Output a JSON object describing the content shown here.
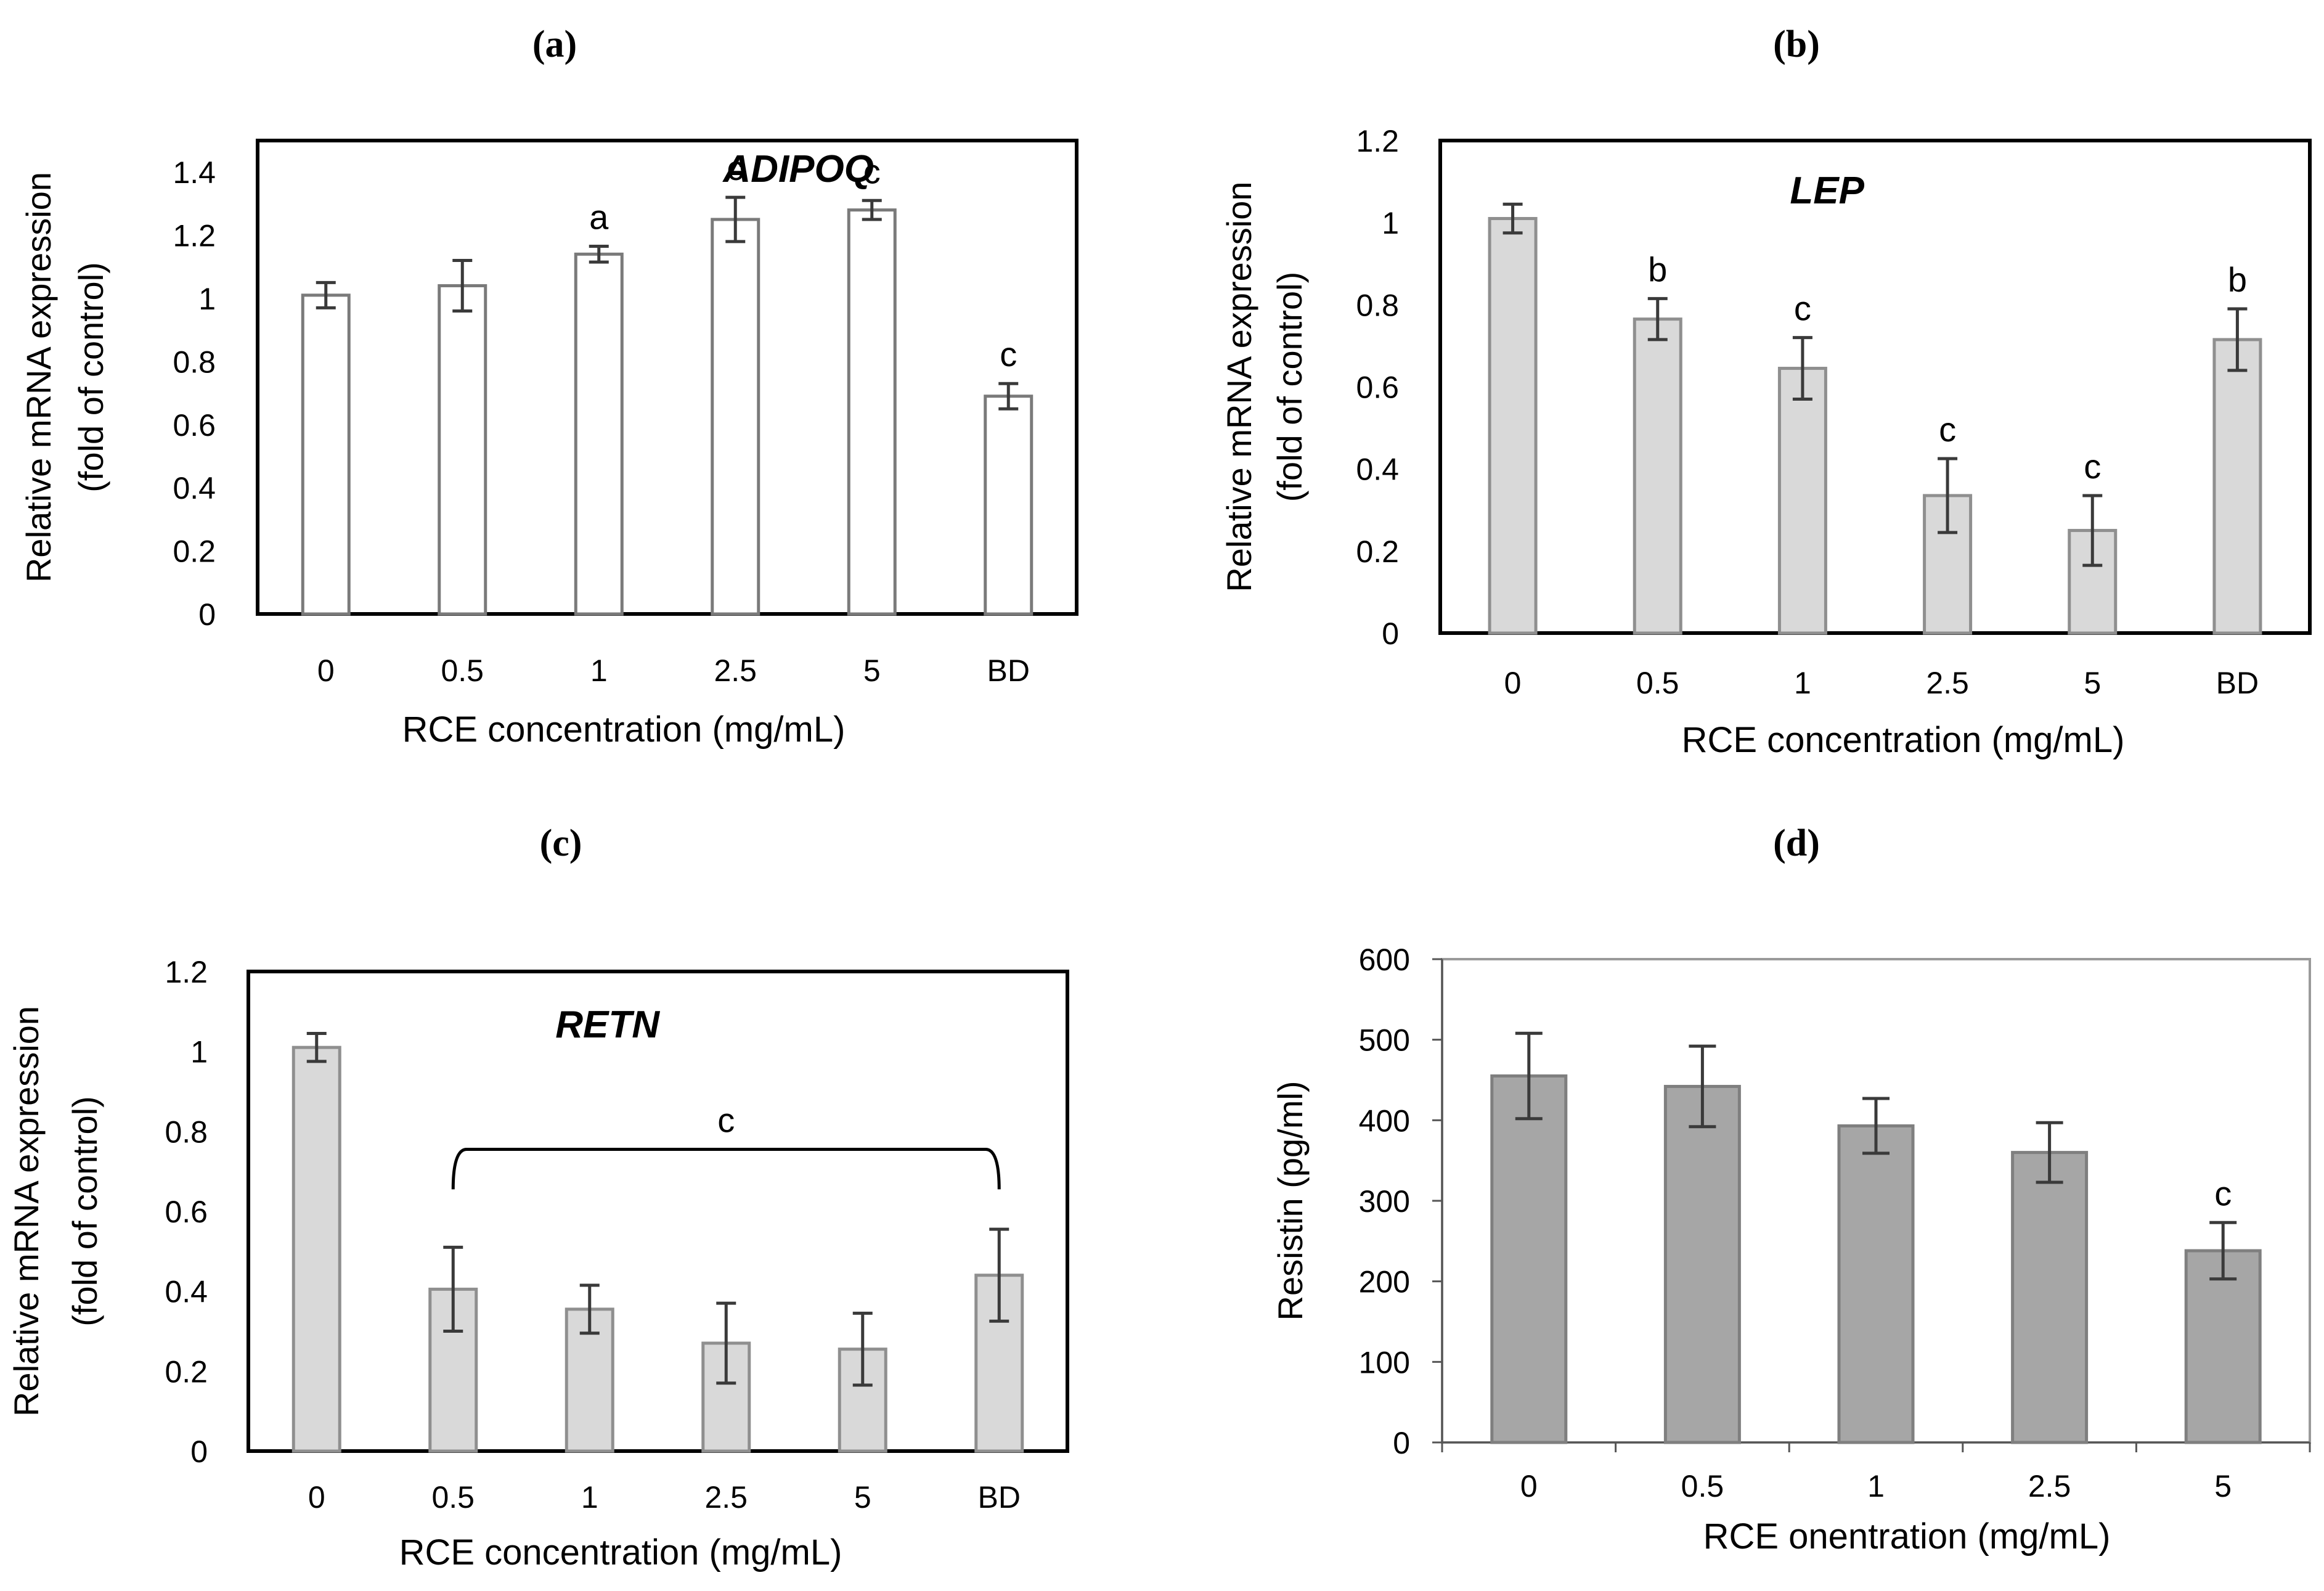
{
  "chart_data": [
    {
      "panel": "(a)",
      "type": "bar",
      "title": "ADIPOQ",
      "categories": [
        "0",
        "0.5",
        "1",
        "2.5",
        "5",
        "BD"
      ],
      "values": [
        1.01,
        1.04,
        1.14,
        1.25,
        1.28,
        0.69
      ],
      "errors": [
        0.04,
        0.08,
        0.025,
        0.07,
        0.03,
        0.04
      ],
      "significance": [
        "",
        "",
        "a",
        "c",
        "c",
        "c"
      ],
      "ylabel_line1": "Relative mRNA expression",
      "ylabel_line2": "(fold of control)",
      "xlabel": "RCE concentration (mg/mL)",
      "ylim": [
        0,
        1.5
      ],
      "yticks": [
        "0",
        "0.2",
        "0.4",
        "0.6",
        "0.8",
        "1",
        "1.2",
        "1.4"
      ],
      "bar_color": "#ffffff",
      "bar_edge": "#7a7a7a",
      "frame_color": "#000000"
    },
    {
      "panel": "(b)",
      "type": "bar",
      "title": "LEP",
      "categories": [
        "0",
        "0.5",
        "1",
        "2.5",
        "5",
        "BD"
      ],
      "values": [
        1.01,
        0.765,
        0.645,
        0.335,
        0.25,
        0.715
      ],
      "errors": [
        0.035,
        0.05,
        0.075,
        0.09,
        0.085,
        0.075
      ],
      "significance": [
        "",
        "b",
        "c",
        "c",
        "c",
        "b"
      ],
      "ylabel_line1": "Relative mRNA expression",
      "ylabel_line2": "(fold of control)",
      "xlabel": "RCE concentration (mg/mL)",
      "ylim": [
        0,
        1.2
      ],
      "yticks": [
        "0",
        "0.2",
        "0.4",
        "0.6",
        "0.8",
        "1",
        "1.2"
      ],
      "bar_color": "#d9d9d9",
      "bar_edge": "#8f8f8f",
      "frame_color": "#000000"
    },
    {
      "panel": "(c)",
      "type": "bar",
      "title": "RETN",
      "categories": [
        "0",
        "0.5",
        "1",
        "2.5",
        "5",
        "BD"
      ],
      "values": [
        1.01,
        0.405,
        0.355,
        0.27,
        0.255,
        0.44
      ],
      "errors": [
        0.035,
        0.105,
        0.06,
        0.1,
        0.09,
        0.115
      ],
      "bracket_label": "c",
      "bracket_from": "0.5",
      "bracket_to": "BD",
      "ylabel_line1": "Relative mRNA expression",
      "ylabel_line2": "(fold of control)",
      "xlabel": "RCE concentration (mg/mL)",
      "ylim": [
        0,
        1.2
      ],
      "yticks": [
        "0",
        "0.2",
        "0.4",
        "0.6",
        "0.8",
        "1",
        "1.2"
      ],
      "bar_color": "#d9d9d9",
      "bar_edge": "#8f8f8f",
      "frame_color": "#000000"
    },
    {
      "panel": "(d)",
      "type": "bar",
      "title": "",
      "categories": [
        "0",
        "0.5",
        "1",
        "2.5",
        "5"
      ],
      "values": [
        455,
        442,
        393,
        360,
        238
      ],
      "errors": [
        53,
        50,
        34,
        37,
        35
      ],
      "significance": [
        "",
        "",
        "",
        "",
        "c"
      ],
      "ylabel_line1": "Resistin (pg/ml)",
      "ylabel_line2": "",
      "xlabel": "RCE onentration (mg/mL)",
      "ylim": [
        0,
        600
      ],
      "yticks": [
        "0",
        "100",
        "200",
        "300",
        "400",
        "500",
        "600"
      ],
      "bar_color": "#a6a6a6",
      "bar_edge": "#7f7f7f",
      "frame_color": "#9a9a9a"
    }
  ]
}
